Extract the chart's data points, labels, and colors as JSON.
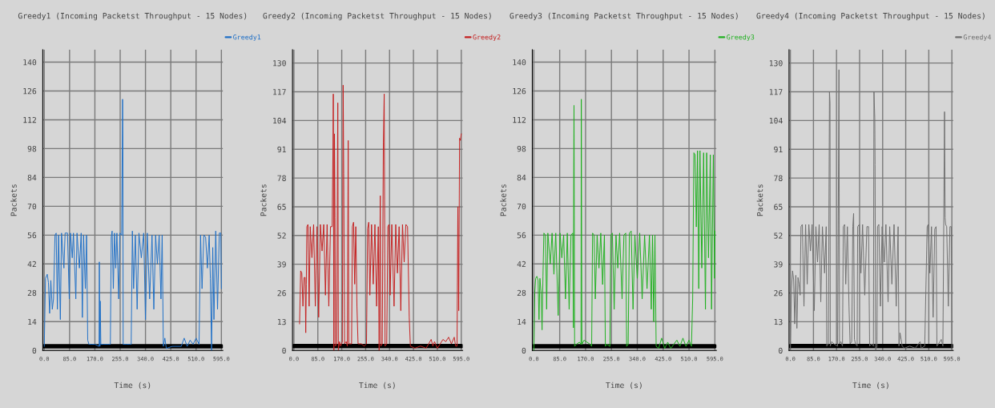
{
  "chart_data": [
    {
      "type": "line",
      "title": "Greedy1 (Incoming Packetst Throughput - 15 Nodes)",
      "xlabel": "Time (s)",
      "ylabel": "Packets",
      "xlim": [
        -5,
        600
      ],
      "ylim": [
        0,
        146
      ],
      "xticks": [
        {
          "value": 0,
          "label": "0.0"
        },
        {
          "value": 85,
          "label": "85.0"
        },
        {
          "value": 170,
          "label": "170.0"
        },
        {
          "value": 255,
          "label": "255.0"
        },
        {
          "value": 340,
          "label": "340.0"
        },
        {
          "value": 425,
          "label": "425.0"
        },
        {
          "value": 510,
          "label": "510.0"
        },
        {
          "value": 595,
          "label": "595.0"
        }
      ],
      "yticks": [
        0,
        14,
        28,
        42,
        56,
        70,
        84,
        98,
        112,
        126,
        140
      ],
      "grid": true,
      "legend": "top right",
      "series": [
        {
          "name": "Greedy1",
          "color": "#1f6fc6",
          "x": [
            0,
            4,
            10,
            14,
            18,
            22,
            27,
            31,
            36,
            40,
            44,
            48,
            54,
            58,
            66,
            70,
            78,
            84,
            88,
            94,
            98,
            106,
            110,
            118,
            124,
            128,
            132,
            138,
            142,
            146,
            150,
            160,
            170,
            184,
            185,
            187,
            188,
            190,
            200,
            215,
            222,
            225,
            228,
            232,
            236,
            240,
            244,
            250,
            254,
            260,
            263,
            264,
            265,
            275,
            285,
            292,
            296,
            300,
            306,
            312,
            318,
            326,
            334,
            340,
            346,
            354,
            362,
            368,
            374,
            380,
            386,
            392,
            396,
            400,
            405,
            410,
            430,
            460,
            470,
            480,
            490,
            500,
            510,
            520,
            525,
            530,
            536,
            542,
            548,
            554,
            558,
            562,
            566,
            570,
            576,
            582,
            588,
            593,
            595
          ],
          "values": [
            2,
            35,
            37,
            33,
            18,
            34,
            20,
            25,
            56,
            57,
            20,
            56,
            15,
            57,
            40,
            57,
            57,
            25,
            57,
            45,
            57,
            25,
            57,
            40,
            57,
            16,
            56,
            30,
            56,
            5,
            3,
            3,
            3,
            2,
            43,
            2,
            24,
            3,
            3,
            3,
            3,
            55,
            58,
            30,
            57,
            40,
            57,
            25,
            57,
            56,
            122,
            104,
            3,
            3,
            3,
            3,
            58,
            30,
            56,
            20,
            57,
            45,
            57,
            15,
            57,
            25,
            56,
            20,
            56,
            42,
            56,
            25,
            56,
            2,
            6,
            1,
            2,
            2,
            6,
            2,
            5,
            3,
            6,
            3,
            56,
            30,
            56,
            55,
            40,
            56,
            35,
            0,
            50,
            15,
            58,
            20,
            57,
            57,
            30
          ]
        },
        {
          "color": "#000000",
          "x": [
            0,
            595
          ],
          "values": [
            2,
            2
          ]
        }
      ]
    },
    {
      "type": "line",
      "title": "Greedy2 (Incoming Packetst Throughput - 15 Nodes)",
      "xlabel": "Time (s)",
      "ylabel": "Packets",
      "xlim": [
        -5,
        600
      ],
      "ylim": [
        0,
        136
      ],
      "xticks": [
        {
          "value": 0,
          "label": "0.0"
        },
        {
          "value": 85,
          "label": "85.0"
        },
        {
          "value": 170,
          "label": "170.0"
        },
        {
          "value": 255,
          "label": "255.0"
        },
        {
          "value": 340,
          "label": "340.0"
        },
        {
          "value": 425,
          "label": "425.0"
        },
        {
          "value": 510,
          "label": "510.0"
        },
        {
          "value": 595,
          "label": "595.0"
        }
      ],
      "yticks": [
        0,
        13,
        26,
        39,
        52,
        65,
        78,
        91,
        104,
        117,
        130
      ],
      "grid": true,
      "legend": "top right",
      "series": [
        {
          "name": "Greedy2",
          "color": "#c41e1e",
          "x": [
            20,
            24,
            28,
            32,
            36,
            40,
            42,
            44,
            46,
            50,
            54,
            58,
            64,
            70,
            76,
            82,
            88,
            94,
            100,
            106,
            112,
            118,
            124,
            130,
            136,
            139,
            140,
            142,
            144,
            146,
            148,
            152,
            156,
            158,
            162,
            166,
            172,
            175,
            177,
            180,
            186,
            190,
            193,
            195,
            200,
            205,
            208,
            212,
            216,
            220,
            224,
            228,
            240,
            250,
            258,
            262,
            266,
            270,
            276,
            282,
            288,
            294,
            300,
            303,
            307,
            309,
            314,
            318,
            321,
            324,
            330,
            334,
            338,
            342,
            348,
            356,
            362,
            368,
            374,
            380,
            386,
            392,
            398,
            404,
            410,
            414,
            430,
            450,
            470,
            488,
            494,
            500,
            510,
            520,
            530,
            540,
            550,
            560,
            570,
            575,
            580,
            583,
            586,
            589,
            592,
            595
          ],
          "values": [
            12,
            36,
            35,
            20,
            33,
            33,
            8,
            30,
            56,
            57,
            20,
            56,
            42,
            57,
            20,
            56,
            15,
            57,
            45,
            57,
            25,
            57,
            20,
            56,
            56,
            94,
            116,
            0,
            98,
            60,
            2,
            3,
            112,
            0,
            4,
            2,
            4,
            120,
            80,
            3,
            4,
            2,
            95,
            3,
            3,
            3,
            56,
            58,
            30,
            56,
            20,
            3,
            3,
            2,
            3,
            55,
            58,
            25,
            57,
            30,
            57,
            20,
            56,
            0,
            70,
            2,
            3,
            94,
            116,
            2,
            3,
            56,
            57,
            25,
            57,
            20,
            57,
            35,
            56,
            18,
            57,
            40,
            57,
            56,
            15,
            2,
            1,
            2,
            1,
            5,
            2,
            4,
            1,
            3,
            5,
            4,
            6,
            3,
            6,
            2,
            2,
            65,
            18,
            96,
            95,
            98
          ]
        },
        {
          "color": "#000000",
          "x": [
            0,
            595
          ],
          "values": [
            2,
            2
          ]
        }
      ]
    },
    {
      "type": "line",
      "title": "Greedy3 (Incoming Packetst Throughput - 15 Nodes)",
      "xlabel": "Time (s)",
      "ylabel": "Packets",
      "xlim": [
        -5,
        600
      ],
      "ylim": [
        0,
        146
      ],
      "xticks": [
        {
          "value": 0,
          "label": "0.0"
        },
        {
          "value": 85,
          "label": "85.0"
        },
        {
          "value": 170,
          "label": "170.0"
        },
        {
          "value": 255,
          "label": "255.0"
        },
        {
          "value": 340,
          "label": "340.0"
        },
        {
          "value": 425,
          "label": "425.0"
        },
        {
          "value": 510,
          "label": "510.0"
        },
        {
          "value": 595,
          "label": "595.0"
        }
      ],
      "yticks": [
        0,
        14,
        28,
        42,
        56,
        70,
        84,
        98,
        112,
        126,
        140
      ],
      "grid": true,
      "legend": "top right",
      "series": [
        {
          "name": "Greedy3",
          "color": "#1eb01e",
          "x": [
            0,
            3,
            6,
            10,
            14,
            17,
            20,
            24,
            27,
            30,
            33,
            38,
            42,
            46,
            54,
            60,
            66,
            72,
            80,
            86,
            92,
            98,
            104,
            110,
            116,
            122,
            128,
            130,
            131,
            132,
            134,
            140,
            150,
            155,
            156,
            158,
            165,
            175,
            185,
            190,
            193,
            198,
            202,
            208,
            214,
            220,
            226,
            232,
            235,
            240,
            250,
            253,
            258,
            264,
            270,
            276,
            282,
            290,
            296,
            302,
            305,
            310,
            314,
            320,
            326,
            332,
            340,
            348,
            356,
            364,
            372,
            380,
            386,
            390,
            394,
            398,
            402,
            410,
            420,
            430,
            440,
            450,
            470,
            480,
            490,
            500,
            510,
            518,
            522,
            526,
            530,
            534,
            538,
            542,
            546,
            552,
            558,
            564,
            568,
            574,
            580,
            584,
            590,
            594,
            595
          ],
          "values": [
            0,
            28,
            35,
            36,
            34,
            15,
            35,
            28,
            10,
            36,
            57,
            56,
            20,
            57,
            42,
            57,
            37,
            57,
            17,
            57,
            45,
            56,
            25,
            57,
            20,
            56,
            57,
            11,
            84,
            119,
            2,
            3,
            4,
            3,
            122,
            3,
            5,
            4,
            3,
            2,
            57,
            56,
            25,
            56,
            40,
            57,
            32,
            56,
            2,
            3,
            2,
            56,
            57,
            20,
            56,
            40,
            57,
            25,
            56,
            57,
            2,
            3,
            57,
            58,
            20,
            56,
            35,
            57,
            25,
            56,
            30,
            56,
            20,
            56,
            14,
            56,
            2,
            1,
            6,
            1,
            4,
            1,
            5,
            2,
            6,
            2,
            5,
            2,
            25,
            96,
            95,
            60,
            97,
            30,
            97,
            40,
            96,
            20,
            96,
            45,
            95,
            20,
            95,
            35,
            58
          ]
        },
        {
          "color": "#000000",
          "x": [
            0,
            595
          ],
          "values": [
            2,
            2
          ]
        }
      ]
    },
    {
      "type": "line",
      "title": "Greedy4 (Incoming Packetst Throughput - 15 Nodes)",
      "xlabel": "Time (s)",
      "ylabel": "Packets",
      "xlim": [
        -5,
        600
      ],
      "ylim": [
        0,
        136
      ],
      "xticks": [
        {
          "value": 0,
          "label": "0.0"
        },
        {
          "value": 85,
          "label": "85.0"
        },
        {
          "value": 170,
          "label": "170.0"
        },
        {
          "value": 255,
          "label": "255.0"
        },
        {
          "value": 340,
          "label": "340.0"
        },
        {
          "value": 425,
          "label": "425.0"
        },
        {
          "value": 510,
          "label": "510.0"
        },
        {
          "value": 595,
          "label": "595.0"
        }
      ],
      "yticks": [
        0,
        13,
        26,
        39,
        52,
        65,
        78,
        91,
        104,
        117,
        130
      ],
      "grid": true,
      "legend": "top right",
      "series": [
        {
          "name": "Greedy4",
          "color": "#6e6e6e",
          "x": [
            0,
            4,
            8,
            12,
            16,
            20,
            24,
            28,
            32,
            36,
            39,
            44,
            50,
            56,
            62,
            68,
            74,
            80,
            88,
            94,
            100,
            106,
            112,
            118,
            126,
            132,
            134,
            140,
            144,
            146,
            147,
            152,
            160,
            174,
            179,
            181,
            186,
            192,
            195,
            200,
            204,
            210,
            216,
            220,
            226,
            230,
            233,
            236,
            240,
            246,
            248,
            254,
            260,
            266,
            274,
            282,
            288,
            292,
            300,
            306,
            308,
            311,
            312,
            314,
            319,
            321,
            326,
            332,
            338,
            346,
            352,
            360,
            366,
            374,
            382,
            390,
            397,
            400,
            404,
            408,
            412,
            420,
            440,
            460,
            478,
            482,
            495,
            504,
            508,
            514,
            520,
            526,
            532,
            537,
            540,
            546,
            556,
            562,
            568,
            570,
            572,
            576,
            582,
            588,
            593,
            595
          ],
          "values": [
            0,
            28,
            36,
            32,
            12,
            34,
            10,
            33,
            30,
            25,
            56,
            57,
            20,
            57,
            30,
            57,
            45,
            57,
            18,
            56,
            40,
            57,
            22,
            56,
            35,
            56,
            2,
            3,
            117,
            112,
            2,
            4,
            3,
            2,
            127,
            3,
            4,
            2,
            56,
            57,
            30,
            56,
            20,
            3,
            4,
            56,
            62,
            5,
            3,
            2,
            56,
            57,
            35,
            57,
            25,
            56,
            56,
            2,
            3,
            2,
            117,
            105,
            84,
            0,
            2,
            56,
            57,
            20,
            56,
            40,
            57,
            22,
            56,
            30,
            57,
            20,
            56,
            2,
            8,
            5,
            2,
            1,
            2,
            1,
            4,
            1,
            2,
            56,
            57,
            35,
            56,
            15,
            55,
            56,
            2,
            3,
            5,
            2,
            108,
            60,
            57,
            56,
            20,
            56,
            56,
            0
          ]
        },
        {
          "color": "#000000",
          "x": [
            0,
            595
          ],
          "values": [
            2,
            2
          ]
        }
      ]
    }
  ]
}
